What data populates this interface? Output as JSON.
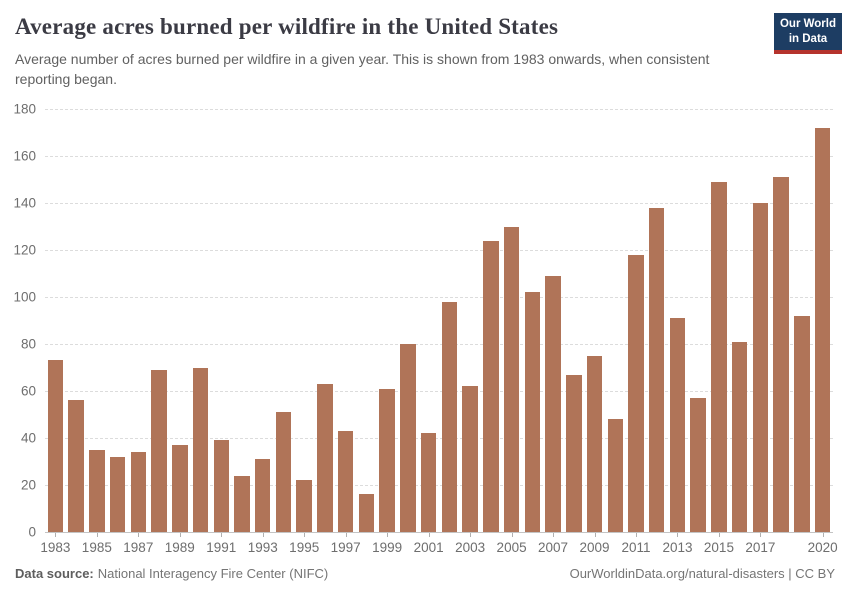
{
  "header": {
    "title": "Average acres burned per wildfire in the United States",
    "subtitle": "Average number of acres burned per wildfire in a given year. This is shown from 1983 onwards, when consistent reporting began.",
    "logo": {
      "line1": "Our World",
      "line2": "in Data"
    }
  },
  "chart_data": {
    "type": "bar",
    "title": "Average acres burned per wildfire in the United States",
    "categories": [
      1983,
      1984,
      1985,
      1986,
      1987,
      1988,
      1989,
      1990,
      1991,
      1992,
      1993,
      1994,
      1995,
      1996,
      1997,
      1998,
      1999,
      2000,
      2001,
      2002,
      2003,
      2004,
      2005,
      2006,
      2007,
      2008,
      2009,
      2010,
      2011,
      2012,
      2013,
      2014,
      2015,
      2016,
      2017,
      2018,
      2019,
      2020
    ],
    "values": [
      73,
      56,
      35,
      32,
      34,
      69,
      37,
      70,
      39,
      24,
      31,
      51,
      22,
      63,
      43,
      16,
      61,
      80,
      42,
      98,
      62,
      124,
      130,
      102,
      109,
      67,
      75,
      48,
      118,
      138,
      91,
      57,
      149,
      81,
      140,
      151,
      92,
      172
    ],
    "xlabel": "",
    "ylabel": "",
    "ylim": [
      0,
      180
    ],
    "ytick_interval": 20,
    "xtick_years": [
      1983,
      1985,
      1987,
      1989,
      1991,
      1993,
      1995,
      1997,
      1999,
      2001,
      2003,
      2005,
      2007,
      2009,
      2011,
      2013,
      2015,
      2017,
      2020
    ],
    "grid": "horizontal-dashed",
    "legend": "none"
  },
  "colors": {
    "bar": "#b07458",
    "title": "#3b3b44",
    "subtitle": "#616161",
    "axis_label": "#6e6e6e",
    "gridline": "#dcdcdc",
    "logo_background": "#1d3d63",
    "logo_stripe": "#b5332d",
    "footer_text": "#757575"
  },
  "footer": {
    "source_label": "Data source:",
    "source_value": "National Interagency Fire Center (NIFC)",
    "credit": "OurWorldinData.org/natural-disasters | CC BY"
  }
}
